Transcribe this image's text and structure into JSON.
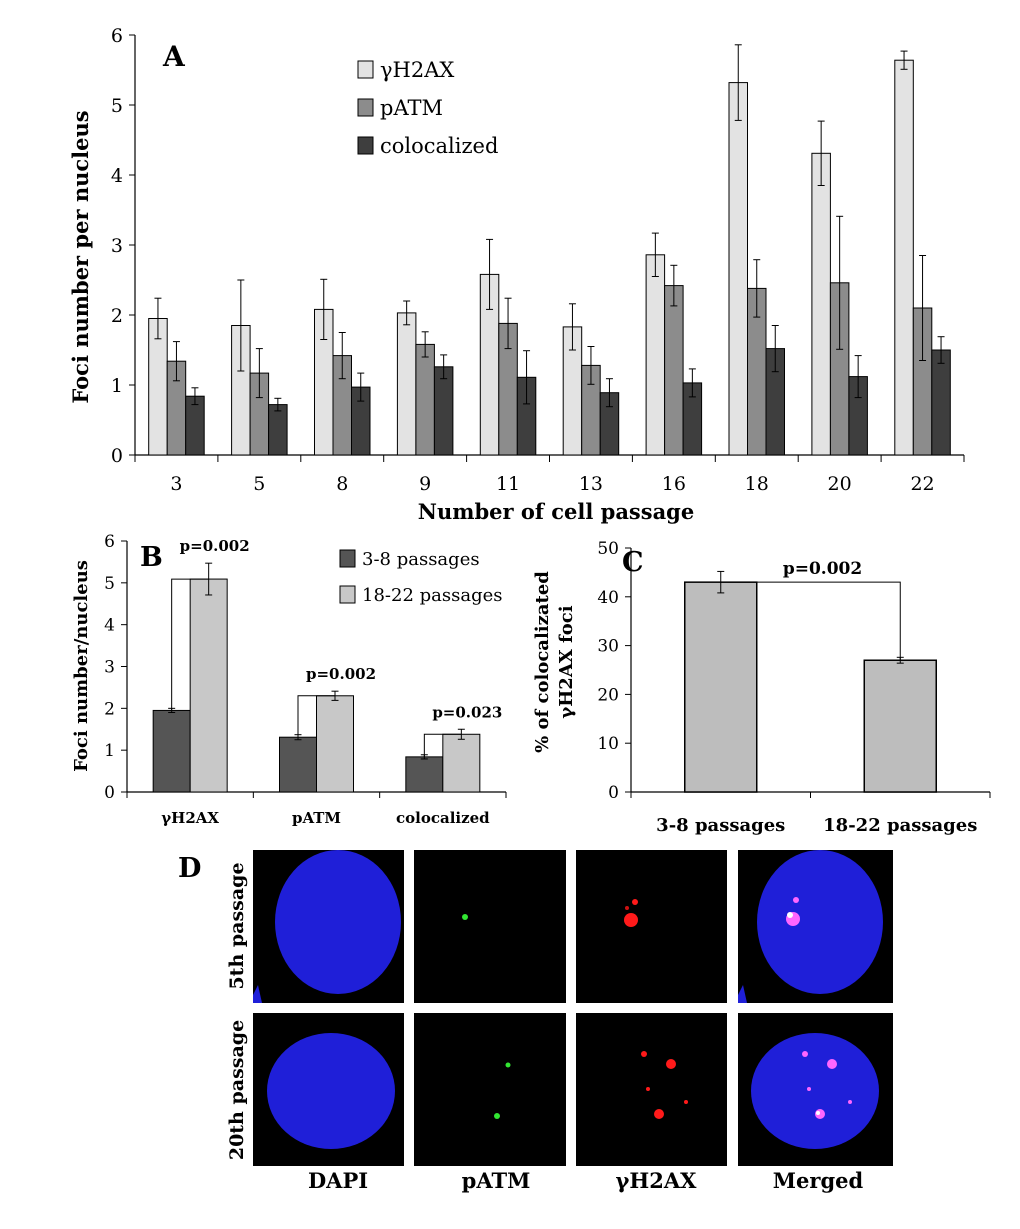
{
  "panels": {
    "a": {
      "label": "A"
    },
    "b": {
      "label": "B"
    },
    "c": {
      "label": "C"
    },
    "d": {
      "label": "D"
    }
  },
  "colors": {
    "light": "#e3e3e3",
    "mid": "#8c8c8c",
    "dark": "#3e3e3e",
    "b_dark": "#555555",
    "b_light": "#c8c8c8",
    "c_bar": "#bdbdbd",
    "dapi": "#1f1fd8",
    "patm_focus": "#32e632",
    "gh2ax_focus": "#ff1a1a",
    "merged_focus": "#ff66ff"
  },
  "chart_data": [
    {
      "id": "A",
      "type": "bar",
      "title": "",
      "xlabel": "Number of cell passage",
      "ylabel": "Foci number per nucleus",
      "ylim": [
        0,
        6
      ],
      "yticks": [
        "0",
        "1",
        "2",
        "3",
        "4",
        "5",
        "6"
      ],
      "categories": [
        "3",
        "5",
        "8",
        "9",
        "11",
        "13",
        "16",
        "18",
        "20",
        "22"
      ],
      "legend_position": "top-center",
      "series": [
        {
          "name": "γH2AX",
          "color": "light",
          "values": [
            1.95,
            1.85,
            2.08,
            2.03,
            2.58,
            1.83,
            2.86,
            5.32,
            4.31,
            5.64
          ],
          "errors": [
            0.29,
            0.65,
            0.43,
            0.17,
            0.5,
            0.33,
            0.31,
            0.54,
            0.46,
            0.13
          ]
        },
        {
          "name": "pATM",
          "color": "mid",
          "values": [
            1.34,
            1.17,
            1.42,
            1.58,
            1.88,
            1.28,
            2.42,
            2.38,
            2.46,
            2.1
          ],
          "errors": [
            0.28,
            0.35,
            0.33,
            0.18,
            0.36,
            0.27,
            0.29,
            0.41,
            0.95,
            0.75
          ]
        },
        {
          "name": "colocalized",
          "color": "dark",
          "values": [
            0.84,
            0.72,
            0.97,
            1.26,
            1.11,
            0.89,
            1.03,
            1.52,
            1.12,
            1.5
          ],
          "errors": [
            0.12,
            0.09,
            0.2,
            0.17,
            0.38,
            0.2,
            0.2,
            0.33,
            0.3,
            0.19
          ]
        }
      ]
    },
    {
      "id": "B",
      "type": "bar",
      "title": "",
      "xlabel": "",
      "ylabel": "Foci number/nucleus",
      "ylim": [
        0,
        6
      ],
      "yticks": [
        "0",
        "1",
        "2",
        "3",
        "4",
        "5",
        "6"
      ],
      "categories": [
        "γH2AX",
        "pATM",
        "colocalized"
      ],
      "legend_position": "top-right",
      "series": [
        {
          "name": "3-8 passages",
          "color": "b_dark",
          "values": [
            1.95,
            1.31,
            0.84
          ],
          "errors": [
            0.05,
            0.06,
            0.05
          ]
        },
        {
          "name": "18-22 passages",
          "color": "b_light",
          "values": [
            5.09,
            2.3,
            1.38
          ],
          "errors": [
            0.38,
            0.11,
            0.12
          ]
        }
      ],
      "annotations": [
        "p=0.002",
        "p=0.002",
        "p=0.023"
      ]
    },
    {
      "id": "C",
      "type": "bar",
      "title": "",
      "xlabel": "",
      "ylabel_lines": [
        "% of colocalizated",
        "γH2AX foci"
      ],
      "ylim": [
        0,
        50
      ],
      "yticks": [
        "0",
        "10",
        "20",
        "30",
        "40",
        "50"
      ],
      "categories": [
        "3-8 passages",
        "18-22 passages"
      ],
      "values": [
        43.0,
        27.0
      ],
      "errors": [
        2.2,
        0.6
      ],
      "annotation": "p=0.002"
    }
  ],
  "microscopy": {
    "row_labels": [
      "5th passage",
      "20th passage"
    ],
    "column_labels": [
      "DAPI",
      "pATM",
      "γH2AX",
      "Merged"
    ]
  }
}
